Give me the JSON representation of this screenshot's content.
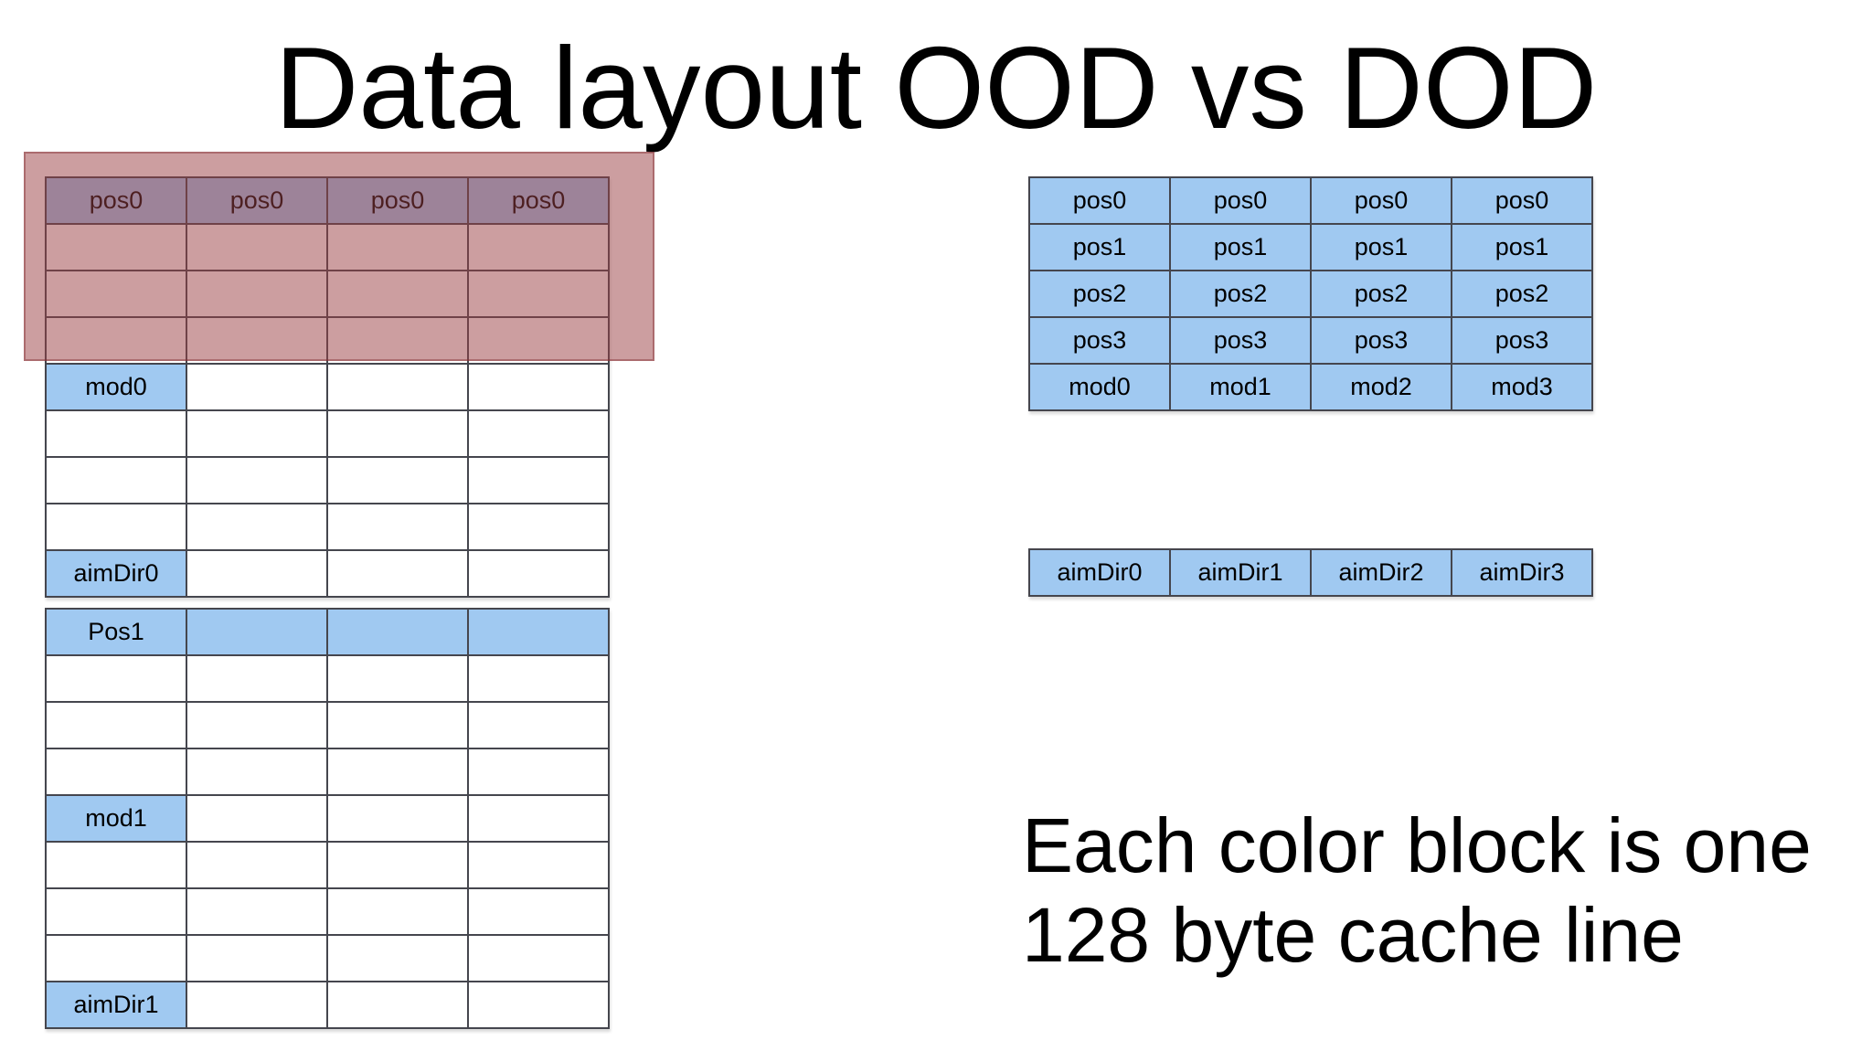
{
  "title": "Data layout OOD vs DOD",
  "caption": {
    "line1": "Each color block is one",
    "line2": "128 byte cache line"
  },
  "colors": {
    "cell_fill_blue": "#a0c9f1",
    "table_border": "#45464e",
    "highlight_overlay": "rgba(153,61,66,0.5)",
    "highlight_overlay_border": "rgba(130,45,48,0.45)"
  },
  "tables": {
    "ood_block0": {
      "rows": [
        [
          {
            "text": "pos0",
            "fill": true
          },
          {
            "text": "pos0",
            "fill": true
          },
          {
            "text": "pos0",
            "fill": true
          },
          {
            "text": "pos0",
            "fill": true
          }
        ],
        [
          {
            "text": "",
            "fill": false
          },
          {
            "text": "",
            "fill": false
          },
          {
            "text": "",
            "fill": false
          },
          {
            "text": "",
            "fill": false
          }
        ],
        [
          {
            "text": "",
            "fill": false
          },
          {
            "text": "",
            "fill": false
          },
          {
            "text": "",
            "fill": false
          },
          {
            "text": "",
            "fill": false
          }
        ],
        [
          {
            "text": "",
            "fill": false
          },
          {
            "text": "",
            "fill": false
          },
          {
            "text": "",
            "fill": false
          },
          {
            "text": "",
            "fill": false
          }
        ],
        [
          {
            "text": "mod0",
            "fill": true
          },
          {
            "text": "",
            "fill": false
          },
          {
            "text": "",
            "fill": false
          },
          {
            "text": "",
            "fill": false
          }
        ],
        [
          {
            "text": "",
            "fill": false
          },
          {
            "text": "",
            "fill": false
          },
          {
            "text": "",
            "fill": false
          },
          {
            "text": "",
            "fill": false
          }
        ],
        [
          {
            "text": "",
            "fill": false
          },
          {
            "text": "",
            "fill": false
          },
          {
            "text": "",
            "fill": false
          },
          {
            "text": "",
            "fill": false
          }
        ],
        [
          {
            "text": "",
            "fill": false
          },
          {
            "text": "",
            "fill": false
          },
          {
            "text": "",
            "fill": false
          },
          {
            "text": "",
            "fill": false
          }
        ],
        [
          {
            "text": "aimDir0",
            "fill": true
          },
          {
            "text": "",
            "fill": false
          },
          {
            "text": "",
            "fill": false
          },
          {
            "text": "",
            "fill": false
          }
        ]
      ]
    },
    "ood_block1": {
      "rows": [
        [
          {
            "text": "Pos1",
            "fill": true
          },
          {
            "text": "",
            "fill": true
          },
          {
            "text": "",
            "fill": true
          },
          {
            "text": "",
            "fill": true
          }
        ],
        [
          {
            "text": "",
            "fill": false
          },
          {
            "text": "",
            "fill": false
          },
          {
            "text": "",
            "fill": false
          },
          {
            "text": "",
            "fill": false
          }
        ],
        [
          {
            "text": "",
            "fill": false
          },
          {
            "text": "",
            "fill": false
          },
          {
            "text": "",
            "fill": false
          },
          {
            "text": "",
            "fill": false
          }
        ],
        [
          {
            "text": "",
            "fill": false
          },
          {
            "text": "",
            "fill": false
          },
          {
            "text": "",
            "fill": false
          },
          {
            "text": "",
            "fill": false
          }
        ],
        [
          {
            "text": "mod1",
            "fill": true
          },
          {
            "text": "",
            "fill": false
          },
          {
            "text": "",
            "fill": false
          },
          {
            "text": "",
            "fill": false
          }
        ],
        [
          {
            "text": "",
            "fill": false
          },
          {
            "text": "",
            "fill": false
          },
          {
            "text": "",
            "fill": false
          },
          {
            "text": "",
            "fill": false
          }
        ],
        [
          {
            "text": "",
            "fill": false
          },
          {
            "text": "",
            "fill": false
          },
          {
            "text": "",
            "fill": false
          },
          {
            "text": "",
            "fill": false
          }
        ],
        [
          {
            "text": "",
            "fill": false
          },
          {
            "text": "",
            "fill": false
          },
          {
            "text": "",
            "fill": false
          },
          {
            "text": "",
            "fill": false
          }
        ],
        [
          {
            "text": "aimDir1",
            "fill": true
          },
          {
            "text": "",
            "fill": false
          },
          {
            "text": "",
            "fill": false
          },
          {
            "text": "",
            "fill": false
          }
        ]
      ]
    },
    "dod_main": {
      "rows": [
        [
          {
            "text": "pos0",
            "fill": true
          },
          {
            "text": "pos0",
            "fill": true
          },
          {
            "text": "pos0",
            "fill": true
          },
          {
            "text": "pos0",
            "fill": true
          }
        ],
        [
          {
            "text": "pos1",
            "fill": true
          },
          {
            "text": "pos1",
            "fill": true
          },
          {
            "text": "pos1",
            "fill": true
          },
          {
            "text": "pos1",
            "fill": true
          }
        ],
        [
          {
            "text": "pos2",
            "fill": true
          },
          {
            "text": "pos2",
            "fill": true
          },
          {
            "text": "pos2",
            "fill": true
          },
          {
            "text": "pos2",
            "fill": true
          }
        ],
        [
          {
            "text": "pos3",
            "fill": true
          },
          {
            "text": "pos3",
            "fill": true
          },
          {
            "text": "pos3",
            "fill": true
          },
          {
            "text": "pos3",
            "fill": true
          }
        ],
        [
          {
            "text": "mod0",
            "fill": true
          },
          {
            "text": "mod1",
            "fill": true
          },
          {
            "text": "mod2",
            "fill": true
          },
          {
            "text": "mod3",
            "fill": true
          }
        ]
      ]
    },
    "dod_aimdir": {
      "rows": [
        [
          {
            "text": "aimDir0",
            "fill": true
          },
          {
            "text": "aimDir1",
            "fill": true
          },
          {
            "text": "aimDir2",
            "fill": true
          },
          {
            "text": "aimDir3",
            "fill": true
          }
        ]
      ]
    }
  }
}
